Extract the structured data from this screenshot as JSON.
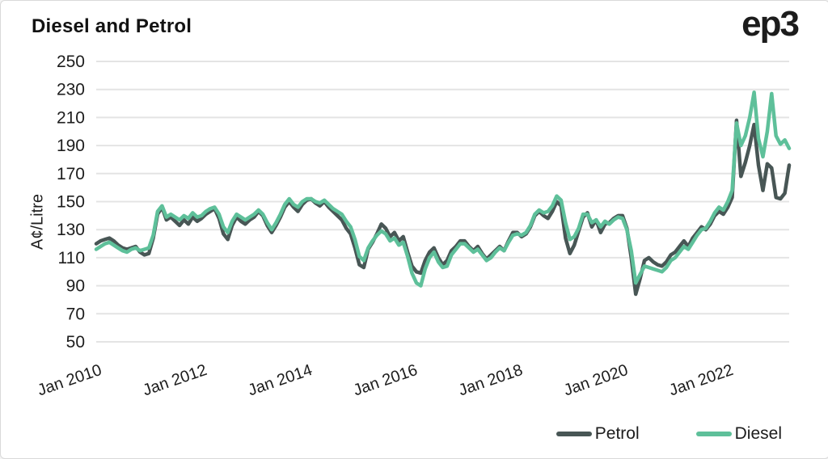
{
  "header": {
    "title": "Diesel and Petrol",
    "logo": "ep3"
  },
  "chart_data": {
    "type": "line",
    "title": "Diesel and Petrol",
    "ylabel": "A¢/Litre",
    "ylim": [
      50,
      250
    ],
    "yticks": [
      250,
      230,
      210,
      190,
      170,
      150,
      130,
      110,
      90,
      70,
      50
    ],
    "x_start": "2010-01",
    "x_end": "2023-03",
    "x_unit": "month",
    "x_tick_labels": [
      "Jan 2010",
      "Jan 2012",
      "Jan 2014",
      "Jan 2016",
      "Jan 2018",
      "Jan 2020",
      "Jan 2022"
    ],
    "x_tick_month_index": [
      0,
      24,
      48,
      72,
      96,
      120,
      144
    ],
    "grid": "horizontal",
    "legend_position": "bottom-right",
    "grid_color": "#e4e4e4",
    "text_color": "#1d1d1d",
    "series": [
      {
        "name": "Petrol",
        "color": "#485655",
        "values": [
          120,
          122,
          123,
          124,
          122,
          119,
          117,
          116,
          117,
          118,
          114,
          112,
          113,
          124,
          141,
          146,
          137,
          139,
          136,
          133,
          137,
          134,
          139,
          136,
          138,
          141,
          143,
          145,
          138,
          127,
          123,
          133,
          139,
          136,
          134,
          137,
          139,
          143,
          140,
          133,
          128,
          133,
          139,
          146,
          150,
          146,
          143,
          148,
          151,
          152,
          149,
          147,
          150,
          146,
          143,
          140,
          137,
          131,
          127,
          117,
          105,
          103,
          116,
          121,
          127,
          134,
          131,
          125,
          128,
          122,
          125,
          114,
          104,
          100,
          99,
          108,
          114,
          117,
          110,
          105,
          108,
          115,
          118,
          122,
          122,
          118,
          115,
          118,
          113,
          109,
          112,
          115,
          118,
          115,
          122,
          128,
          128,
          125,
          127,
          132,
          140,
          143,
          140,
          138,
          143,
          150,
          147,
          124,
          113,
          119,
          129,
          139,
          142,
          132,
          137,
          128,
          134,
          135,
          138,
          140,
          140,
          131,
          110,
          84,
          95,
          108,
          110,
          107,
          105,
          104,
          107,
          112,
          114,
          118,
          122,
          118,
          124,
          128,
          132,
          130,
          134,
          140,
          143,
          141,
          146,
          153,
          208,
          168,
          178,
          190,
          205,
          176,
          158,
          177,
          174,
          153,
          152,
          156,
          176
        ]
      },
      {
        "name": "Diesel",
        "color": "#5ec09a",
        "values": [
          116,
          118,
          120,
          121,
          119,
          117,
          115,
          114,
          116,
          117,
          115,
          116,
          117,
          126,
          143,
          147,
          139,
          141,
          139,
          137,
          140,
          138,
          142,
          139,
          140,
          143,
          145,
          146,
          141,
          132,
          128,
          136,
          141,
          139,
          137,
          139,
          141,
          144,
          141,
          135,
          130,
          135,
          141,
          148,
          152,
          148,
          146,
          150,
          152,
          152,
          150,
          149,
          151,
          148,
          145,
          143,
          141,
          136,
          132,
          123,
          111,
          108,
          117,
          122,
          126,
          129,
          127,
          122,
          124,
          119,
          121,
          111,
          99,
          92,
          90,
          102,
          110,
          114,
          107,
          103,
          104,
          112,
          116,
          120,
          120,
          117,
          114,
          116,
          112,
          108,
          110,
          114,
          117,
          115,
          121,
          126,
          127,
          126,
          128,
          133,
          141,
          144,
          142,
          143,
          147,
          154,
          151,
          135,
          123,
          125,
          131,
          141,
          141,
          135,
          137,
          132,
          136,
          134,
          137,
          139,
          138,
          130,
          115,
          92,
          98,
          104,
          103,
          102,
          101,
          100,
          103,
          108,
          110,
          114,
          118,
          116,
          121,
          126,
          130,
          131,
          136,
          142,
          146,
          144,
          150,
          158,
          206,
          190,
          197,
          210,
          228,
          195,
          182,
          200,
          227,
          197,
          191,
          194,
          188
        ]
      }
    ]
  }
}
